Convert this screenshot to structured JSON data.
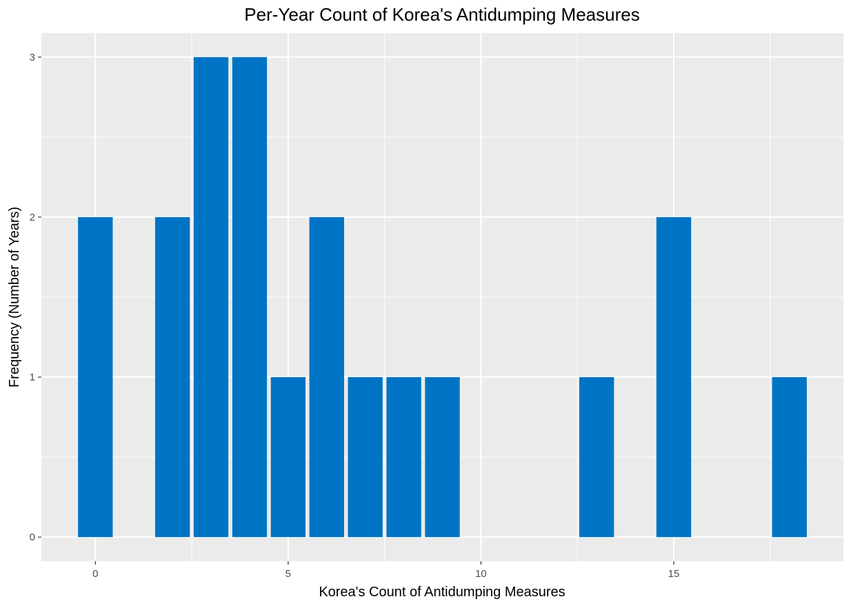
{
  "chart_data": {
    "type": "bar",
    "title": "Per-Year Count of Korea's Antidumping Measures",
    "xlabel": "Korea's Count of Antidumping Measures",
    "ylabel": "Frequency (Number of Years)",
    "x": [
      0,
      2,
      3,
      4,
      5,
      6,
      7,
      8,
      9,
      13,
      15,
      18
    ],
    "values": [
      2,
      2,
      3,
      3,
      1,
      2,
      1,
      1,
      1,
      1,
      2,
      1
    ],
    "xlim": [
      -1.4,
      19.4
    ],
    "ylim": [
      -0.15,
      3.15
    ],
    "xticks": [
      0,
      5,
      10,
      15
    ],
    "yticks": [
      0,
      1,
      2,
      3
    ],
    "grid": true,
    "bar_color": "#0074C4",
    "panel_color": "#EBEBEB",
    "grid_color": "#FFFFFF"
  }
}
